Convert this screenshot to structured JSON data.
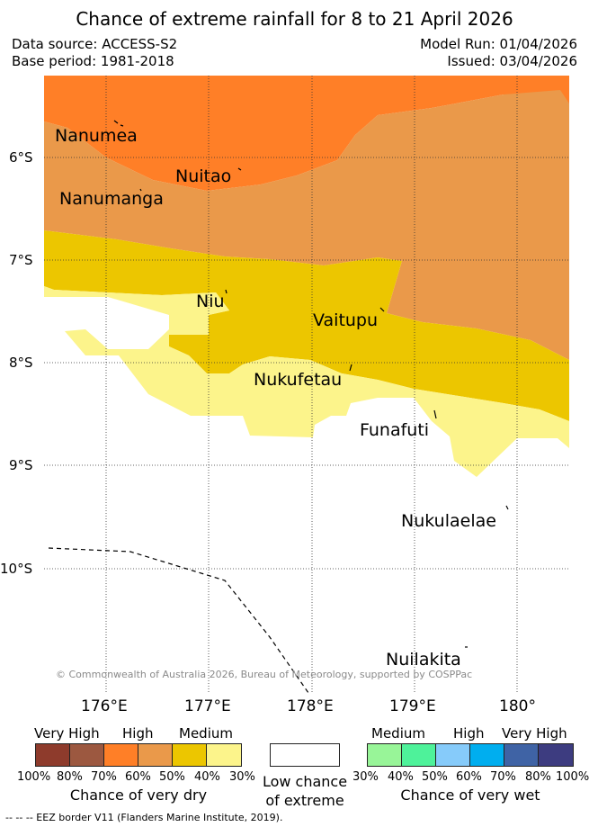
{
  "header": {
    "title": "Chance of extreme rainfall for 8 to 21 April 2026",
    "data_source": "Data source: ACCESS-S2",
    "base_period": "Base period: 1981-2018",
    "model_run": "Model Run: 01/04/2026",
    "issued": "Issued: 03/04/2026"
  },
  "map": {
    "lat_labels": [
      "6°S",
      "7°S",
      "8°S",
      "9°S",
      "10°S"
    ],
    "lon_labels": [
      "176°E",
      "177°E",
      "178°E",
      "179°E",
      "180°"
    ],
    "places": [
      "Nanumea",
      "Nuitao",
      "Nanumanga",
      "Niu",
      "Vaitupu",
      "Nukufetau",
      "Funafuti",
      "Nukulaelae",
      "Nuilakita"
    ],
    "credit": "© Commonwealth of Australia 2026, Bureau of Meteorology, supported by COSPPac"
  },
  "legend": {
    "dry": {
      "categories": [
        "Very High",
        "High",
        "Medium"
      ],
      "percents": [
        "100%",
        "80%",
        "70%",
        "60%",
        "50%",
        "40%",
        "30%"
      ],
      "colors": [
        "#8e3b2c",
        "#9c5840",
        "#ff7f27",
        "#ea994a",
        "#ecc600",
        "#fcf48b"
      ],
      "title": "Chance of very dry"
    },
    "low": {
      "line1": "Low chance",
      "line2": "of extreme"
    },
    "wet": {
      "categories": [
        "Medium",
        "High",
        "Very High"
      ],
      "percents": [
        "30%",
        "40%",
        "50%",
        "60%",
        "70%",
        "80%",
        "100%"
      ],
      "colors": [
        "#98f598",
        "#4ef29a",
        "#86cbfa",
        "#00aeef",
        "#3f63a5",
        "#3d3c80"
      ],
      "title": "Chance of very wet"
    },
    "eez_note": "-- -- -- EEZ border V11 (Flanders Marine Institute, 2019)."
  }
}
